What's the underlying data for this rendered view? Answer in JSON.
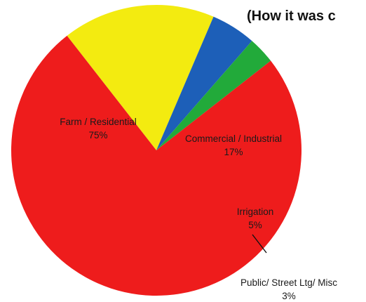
{
  "chart_data": {
    "type": "pie",
    "title": "(How it was c",
    "slices": [
      {
        "label": "Commercial / Industrial",
        "pct_label": "17%",
        "value": 17,
        "color": "#f3eb10"
      },
      {
        "label": "Irrigation",
        "pct_label": "5%",
        "value": 5,
        "color": "#1d5fb8"
      },
      {
        "label": "Public/ Street Ltg/ Misc",
        "pct_label": "3%",
        "value": 3,
        "color": "#22aa3a"
      },
      {
        "label": "Farm / Residential",
        "pct_label": "75%",
        "value": 75,
        "color": "#ee1c1c"
      }
    ],
    "legend": "none",
    "data_labels": "on-slice"
  }
}
